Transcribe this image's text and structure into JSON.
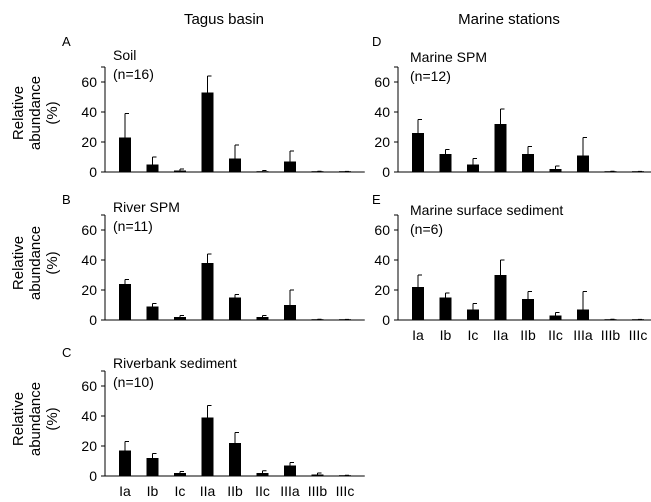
{
  "headers": {
    "left": "Tagus basin",
    "right": "Marine stations"
  },
  "y_axis_label": [
    "Relative",
    "abundance",
    "(%)"
  ],
  "chart_data": [
    {
      "panel": "A",
      "type": "bar",
      "annotation": [
        "Soil",
        "(n=16)"
      ],
      "categories": [
        "Ia",
        "Ib",
        "Ic",
        "IIa",
        "IIb",
        "IIc",
        "IIIa",
        "IIIb",
        "IIIc"
      ],
      "values": [
        23,
        5,
        1,
        53,
        9,
        0.5,
        7,
        0.3,
        0.2
      ],
      "errors": [
        16,
        5,
        1,
        11,
        9,
        0.5,
        7,
        0.2,
        0.2
      ],
      "ylim": [
        0,
        70
      ],
      "yticks": [
        0,
        20,
        40,
        60
      ],
      "xlabel": "",
      "ylabel": "Relative abundance (%)"
    },
    {
      "panel": "B",
      "type": "bar",
      "annotation": [
        "River SPM",
        "(n=11)"
      ],
      "categories": [
        "Ia",
        "Ib",
        "Ic",
        "IIa",
        "IIb",
        "IIc",
        "IIIa",
        "IIIb",
        "IIIc"
      ],
      "values": [
        24,
        9,
        2,
        38,
        15,
        2,
        10,
        0.3,
        0.2
      ],
      "errors": [
        3,
        2,
        1,
        6,
        2,
        1,
        10,
        0.2,
        0.2
      ],
      "ylim": [
        0,
        70
      ],
      "yticks": [
        0,
        20,
        40,
        60
      ],
      "xlabel": "",
      "ylabel": "Relative abundance (%)"
    },
    {
      "panel": "C",
      "type": "bar",
      "annotation": [
        "Riverbank sediment",
        "(n=10)"
      ],
      "categories": [
        "Ia",
        "Ib",
        "Ic",
        "IIa",
        "IIb",
        "IIc",
        "IIIa",
        "IIIb",
        "IIIc"
      ],
      "values": [
        17,
        12,
        2,
        39,
        22,
        2,
        7,
        1,
        0.3
      ],
      "errors": [
        6,
        3,
        1,
        8,
        7,
        1.5,
        2,
        1,
        0.2
      ],
      "ylim": [
        0,
        70
      ],
      "yticks": [
        0,
        20,
        40,
        60
      ],
      "xlabel": "",
      "ylabel": "Relative abundance (%)"
    },
    {
      "panel": "D",
      "type": "bar",
      "annotation": [
        "Marine SPM",
        "(n=12)"
      ],
      "categories": [
        "Ia",
        "Ib",
        "Ic",
        "IIa",
        "IIb",
        "IIc",
        "IIIa",
        "IIIb",
        "IIIc"
      ],
      "values": [
        26,
        12,
        5,
        32,
        12,
        2,
        11,
        0.3,
        0.2
      ],
      "errors": [
        9,
        3,
        4,
        10,
        5,
        2,
        12,
        0.2,
        0.2
      ],
      "ylim": [
        0,
        70
      ],
      "yticks": [
        0,
        20,
        40,
        60
      ],
      "xlabel": "",
      "ylabel": ""
    },
    {
      "panel": "E",
      "type": "bar",
      "annotation": [
        "Marine surface sediment",
        "(n=6)"
      ],
      "categories": [
        "Ia",
        "Ib",
        "Ic",
        "IIa",
        "IIb",
        "IIc",
        "IIIa",
        "IIIb",
        "IIIc"
      ],
      "values": [
        22,
        15,
        7,
        30,
        14,
        3,
        7,
        0.3,
        0.2
      ],
      "errors": [
        8,
        3,
        4,
        10,
        5,
        2,
        12,
        0.2,
        0.2
      ],
      "ylim": [
        0,
        70
      ],
      "yticks": [
        0,
        20,
        40,
        60
      ],
      "xlabel": "",
      "ylabel": ""
    }
  ]
}
